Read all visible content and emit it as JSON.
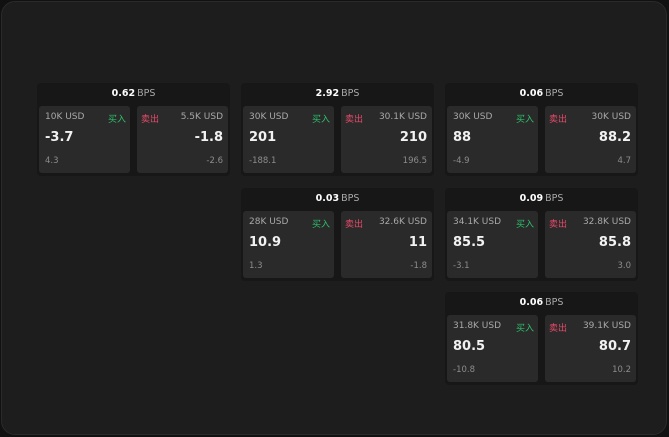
{
  "unit": "BPS",
  "buy_label": "买入",
  "sell_label": "卖出",
  "colors": {
    "buy": "#2fbf6a",
    "sell": "#e84a6a",
    "background": "#1d1d1d"
  },
  "cards": [
    {
      "spread": "0.62",
      "buy": {
        "qty": "10K USD",
        "price": "-3.7",
        "sub": "4.3"
      },
      "sell": {
        "qty": "5.5K USD",
        "price": "-1.8",
        "sub": "-2.6"
      }
    },
    {
      "spread": "2.92",
      "buy": {
        "qty": "30K USD",
        "price": "201",
        "sub": "-188.1"
      },
      "sell": {
        "qty": "30.1K USD",
        "price": "210",
        "sub": "196.5"
      }
    },
    {
      "spread": "0.06",
      "buy": {
        "qty": "30K USD",
        "price": "88",
        "sub": "-4.9"
      },
      "sell": {
        "qty": "30K USD",
        "price": "88.2",
        "sub": "4.7"
      }
    },
    {
      "spread": "0.03",
      "buy": {
        "qty": "28K USD",
        "price": "10.9",
        "sub": "1.3"
      },
      "sell": {
        "qty": "32.6K USD",
        "price": "11",
        "sub": "-1.8"
      }
    },
    {
      "spread": "0.09",
      "buy": {
        "qty": "34.1K USD",
        "price": "85.5",
        "sub": "-3.1"
      },
      "sell": {
        "qty": "32.8K USD",
        "price": "85.8",
        "sub": "3.0"
      }
    },
    {
      "spread": "0.06",
      "buy": {
        "qty": "31.8K USD",
        "price": "80.5",
        "sub": "-10.8"
      },
      "sell": {
        "qty": "39.1K USD",
        "price": "80.7",
        "sub": "10.2"
      }
    }
  ]
}
